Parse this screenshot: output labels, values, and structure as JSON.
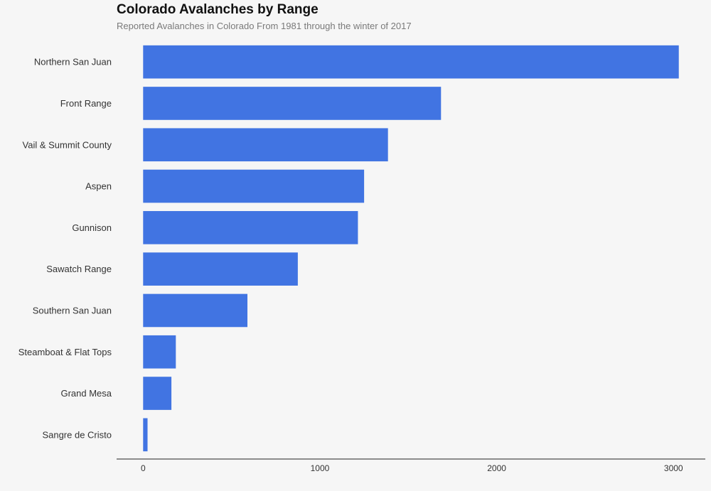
{
  "chart_data": {
    "type": "bar",
    "orientation": "horizontal",
    "title": "Colorado Avalanches by Range",
    "subtitle": "Reported Avalanches in Colorado From 1981 through the winter of 2017",
    "xlabel": "",
    "ylabel": "",
    "categories": [
      "Northern San Juan",
      "Front Range",
      "Vail & Summit County",
      "Aspen",
      "Gunnison",
      "Sawatch Range",
      "Southern San Juan",
      "Steamboat & Flat Tops",
      "Grand Mesa",
      "Sangre de Cristo"
    ],
    "values": [
      3030,
      1685,
      1385,
      1250,
      1215,
      875,
      590,
      185,
      160,
      25
    ],
    "xlim": [
      -150,
      3180
    ],
    "x_ticks": [
      "0",
      "1000",
      "2000",
      "3000"
    ],
    "grid": false,
    "legend": "none",
    "bar_color": "#4174e2"
  }
}
